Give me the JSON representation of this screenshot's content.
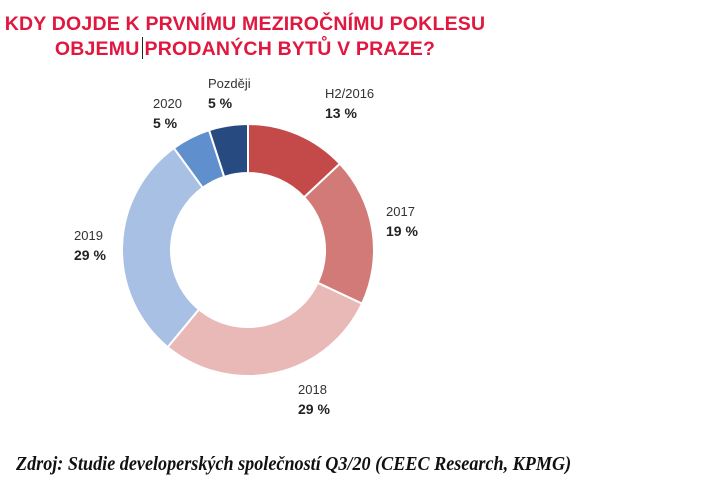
{
  "chart_data": {
    "type": "pie",
    "donut": true,
    "title_line1": "KDY DOJDE K PRVNÍMU MEZIROČNÍMU POKLESU",
    "title_line2a": "OBJEMU",
    "title_line2b": "PRODANÝCH BYTŮ V PRAZE?",
    "categories": [
      "H2/2016",
      "2017",
      "2018",
      "2019",
      "2020",
      "Později"
    ],
    "values": [
      13,
      19,
      29,
      29,
      5,
      5
    ],
    "value_labels": [
      "13 %",
      "19 %",
      "29 %",
      "29 %",
      "5 %",
      "5 %"
    ],
    "colors": [
      "#c34a48",
      "#d27a77",
      "#e8b9b7",
      "#a8c0e4",
      "#5f8fcd",
      "#274b80"
    ],
    "unit": "%"
  },
  "source": "Zdroj: Studie developerských společností Q3/20 (CEEC Research, KPMG)"
}
